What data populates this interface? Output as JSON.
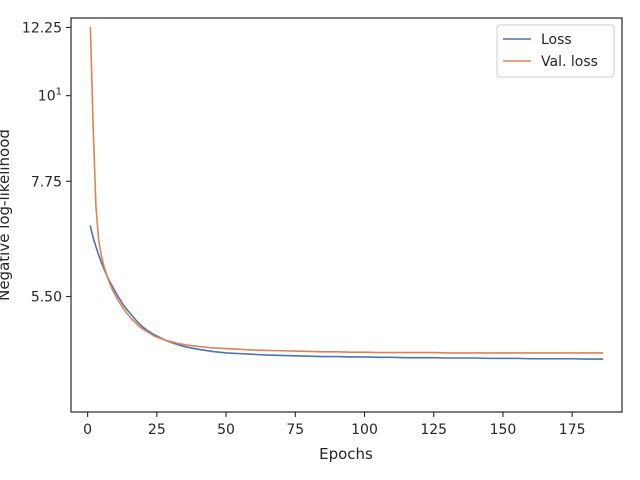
{
  "chart_data": {
    "type": "line",
    "xlabel": "Epochs",
    "ylabel": "Negative log-likelihood",
    "y_scale": "log",
    "grid": false,
    "legend_position": "top-right",
    "xlim": [
      -6,
      193
    ],
    "ylim": [
      3.9,
      12.6
    ],
    "x_ticks": [
      0,
      25,
      50,
      75,
      100,
      125,
      150,
      175
    ],
    "y_ticks": [
      {
        "value": 12.25,
        "label": "12.25"
      },
      {
        "value": 10,
        "label": "10¹"
      },
      {
        "value": 7.75,
        "label": "7.75"
      },
      {
        "value": 5.5,
        "label": "5.50"
      }
    ],
    "series": [
      {
        "name": "Loss",
        "color": "#4c72b0",
        "x": [
          1,
          2,
          3,
          4,
          5,
          6,
          7,
          8,
          9,
          10,
          11,
          12,
          13,
          14,
          15,
          16,
          17,
          18,
          19,
          20,
          22,
          24,
          26,
          28,
          30,
          33,
          36,
          40,
          45,
          50,
          55,
          60,
          65,
          70,
          75,
          80,
          85,
          90,
          95,
          100,
          105,
          110,
          115,
          120,
          125,
          130,
          135,
          140,
          145,
          150,
          155,
          160,
          165,
          170,
          175,
          180,
          186
        ],
        "values": [
          6.78,
          6.55,
          6.38,
          6.22,
          6.08,
          5.96,
          5.85,
          5.75,
          5.66,
          5.58,
          5.5,
          5.43,
          5.36,
          5.3,
          5.25,
          5.2,
          5.15,
          5.1,
          5.06,
          5.02,
          4.96,
          4.91,
          4.87,
          4.83,
          4.8,
          4.76,
          4.73,
          4.7,
          4.67,
          4.65,
          4.64,
          4.63,
          4.62,
          4.615,
          4.61,
          4.605,
          4.6,
          4.6,
          4.595,
          4.595,
          4.59,
          4.59,
          4.585,
          4.585,
          4.585,
          4.58,
          4.58,
          4.58,
          4.575,
          4.575,
          4.575,
          4.57,
          4.57,
          4.57,
          4.57,
          4.565,
          4.565
        ]
      },
      {
        "name": "Val. loss",
        "color": "#dd8452",
        "x": [
          1,
          2,
          3,
          4,
          5,
          6,
          7,
          8,
          9,
          10,
          11,
          12,
          13,
          14,
          15,
          16,
          17,
          18,
          19,
          20,
          22,
          24,
          26,
          28,
          30,
          33,
          36,
          40,
          45,
          50,
          55,
          60,
          65,
          70,
          75,
          80,
          85,
          90,
          95,
          100,
          105,
          110,
          115,
          120,
          125,
          130,
          135,
          140,
          145,
          150,
          155,
          160,
          165,
          170,
          175,
          180,
          186
        ],
        "values": [
          12.25,
          9.1,
          7.2,
          6.5,
          6.2,
          6.0,
          5.85,
          5.72,
          5.61,
          5.52,
          5.44,
          5.37,
          5.3,
          5.24,
          5.19,
          5.14,
          5.1,
          5.06,
          5.02,
          4.99,
          4.94,
          4.89,
          4.86,
          4.83,
          4.81,
          4.78,
          4.76,
          4.74,
          4.72,
          4.71,
          4.7,
          4.69,
          4.685,
          4.68,
          4.675,
          4.67,
          4.665,
          4.665,
          4.66,
          4.66,
          4.655,
          4.655,
          4.655,
          4.655,
          4.655,
          4.65,
          4.65,
          4.65,
          4.65,
          4.65,
          4.65,
          4.65,
          4.65,
          4.65,
          4.65,
          4.65,
          4.65
        ]
      }
    ]
  }
}
